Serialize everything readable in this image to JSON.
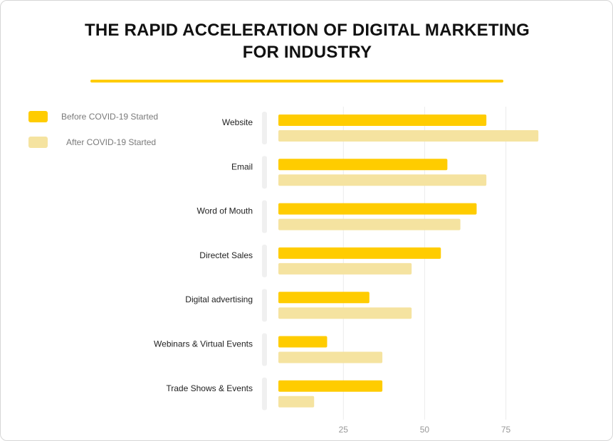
{
  "colors": {
    "before": "#FFCC00",
    "after": "#F5E3A0",
    "accent_rule": "#FFCC00",
    "gridline": "#ececec",
    "category_track": "#f0f0f0",
    "tick_label": "#999999",
    "category_label": "#222222"
  },
  "chart_data": {
    "type": "bar",
    "orientation": "horizontal",
    "title": "THE RAPID ACCELERATION OF DIGITAL MARKETING FOR INDUSTRY",
    "title_lines": [
      "THE RAPID ACCELERATION OF DIGITAL MARKETING",
      "FOR INDUSTRY"
    ],
    "categories": [
      "Website",
      "Email",
      "Word of Mouth",
      "Directet Sales",
      "Digital advertising",
      "Webinars & Virtual Events",
      "Trade Shows & Events"
    ],
    "series": [
      {
        "name": "Before COVID-19 Started",
        "values": [
          69,
          57,
          66,
          55,
          33,
          20,
          37
        ]
      },
      {
        "name": "After COVID-19 Started",
        "values": [
          85,
          69,
          61,
          46,
          46,
          37,
          16
        ]
      }
    ],
    "xticks": [
      25,
      50,
      75
    ],
    "xlim": [
      5,
      90
    ],
    "grid": true,
    "legend": "top-left",
    "xlabel": "",
    "ylabel": ""
  }
}
